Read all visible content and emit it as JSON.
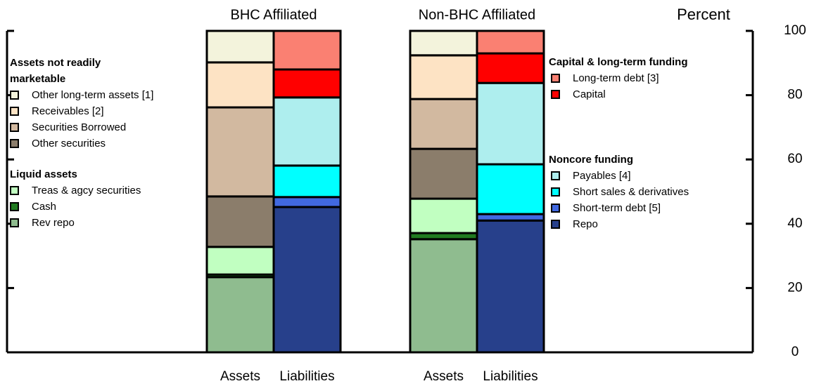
{
  "chart_data": {
    "type": "bar",
    "stacked": true,
    "y_label": "Percent",
    "groups": [
      "BHC Affiliated",
      "Non-BHC Affiliated"
    ],
    "categories": [
      "Assets",
      "Liabilities",
      "Assets",
      "Liabilities"
    ],
    "ylim": [
      0,
      100
    ],
    "yticks": [
      0,
      20,
      40,
      60,
      80,
      100
    ],
    "series_groups": [
      {
        "title": "Assets not readily marketable",
        "series": [
          {
            "name": "Other long-term assets [1]",
            "color": "#f3f3dc",
            "values": [
              9.8,
              null,
              7.6,
              null
            ]
          },
          {
            "name": "Receivables [2]",
            "color": "#fde3c4",
            "values": [
              14.0,
              null,
              13.6,
              null
            ]
          },
          {
            "name": "Securities Borrowed",
            "color": "#d2b9a0",
            "values": [
              27.7,
              null,
              15.5,
              null
            ]
          },
          {
            "name": "Other securities",
            "color": "#8b7d6b",
            "values": [
              15.7,
              null,
              15.5,
              null
            ]
          }
        ]
      },
      {
        "title": "Liquid assets",
        "series": [
          {
            "name": "Treas & agcy securities",
            "color": "#c1ffc1",
            "values": [
              8.6,
              null,
              10.7,
              null
            ]
          },
          {
            "name": "Cash",
            "color": "#207a20",
            "values": [
              0.8,
              null,
              1.9,
              null
            ]
          },
          {
            "name": "Rev repo",
            "color": "#8fbc8f",
            "values": [
              23.4,
              null,
              35.2,
              null
            ]
          }
        ]
      },
      {
        "title": "Capital & long-term funding",
        "series": [
          {
            "name": "Long-term debt [3]",
            "color": "#fa8072",
            "values": [
              null,
              12.0,
              null,
              7.0
            ]
          },
          {
            "name": "Capital",
            "color": "#ff0000",
            "values": [
              null,
              8.7,
              null,
              9.2
            ]
          }
        ]
      },
      {
        "title": "Noncore funding",
        "series": [
          {
            "name": "Payables [4]",
            "color": "#aeeeee",
            "values": [
              null,
              21.2,
              null,
              25.3
            ]
          },
          {
            "name": "Short sales & derivatives",
            "color": "#00ffff",
            "values": [
              null,
              9.8,
              null,
              15.5
            ]
          },
          {
            "name": "Short-term debt [5]",
            "color": "#4169e1",
            "values": [
              null,
              3.1,
              null,
              2.0
            ]
          },
          {
            "name": "Repo",
            "color": "#27408b",
            "values": [
              null,
              45.2,
              null,
              41.0
            ]
          }
        ]
      }
    ]
  }
}
